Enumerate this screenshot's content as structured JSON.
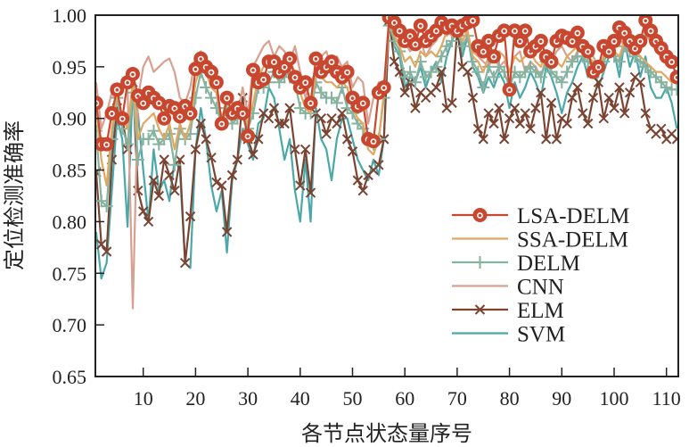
{
  "chart_data": {
    "type": "line",
    "title": "",
    "xlabel": "各节点状态量序号",
    "ylabel": "定位检测准确率",
    "xlim": [
      1,
      112
    ],
    "ylim": [
      0.65,
      1.0
    ],
    "grid": false,
    "legend_position": "bottom-right",
    "x_ticks": [
      "10",
      "20",
      "30",
      "40",
      "50",
      "60",
      "70",
      "80",
      "90",
      "100",
      "110"
    ],
    "x_tick_values": [
      10,
      20,
      30,
      40,
      50,
      60,
      70,
      80,
      90,
      100,
      110
    ],
    "y_ticks": [
      "0.65",
      "0.70",
      "0.75",
      "0.80",
      "0.85",
      "0.90",
      "0.95",
      "1.00"
    ],
    "y_tick_values": [
      0.65,
      0.7,
      0.75,
      0.8,
      0.85,
      0.9,
      0.95,
      1.0
    ],
    "series": [
      {
        "name": "SVM",
        "color": "#4aa8a8",
        "marker": "none",
        "values": [
          0.79,
          0.745,
          0.76,
          0.83,
          0.9,
          0.88,
          0.795,
          0.935,
          0.905,
          0.85,
          0.8,
          0.87,
          0.83,
          0.84,
          0.82,
          0.86,
          0.85,
          0.76,
          0.755,
          0.87,
          0.91,
          0.88,
          0.835,
          0.81,
          0.83,
          0.77,
          0.84,
          0.86,
          0.89,
          0.875,
          0.86,
          0.895,
          0.9,
          0.93,
          0.92,
          0.89,
          0.86,
          0.88,
          0.83,
          0.8,
          0.86,
          0.8,
          0.91,
          0.88,
          0.87,
          0.84,
          0.88,
          0.9,
          0.9,
          0.88,
          0.86,
          0.85,
          0.84,
          0.86,
          0.845,
          0.88,
          0.995,
          0.97,
          0.96,
          0.93,
          0.94,
          0.935,
          0.95,
          0.93,
          0.945,
          0.955,
          0.935,
          0.96,
          0.975,
          0.985,
          0.96,
          0.98,
          0.95,
          0.94,
          0.925,
          0.94,
          0.93,
          0.945,
          0.935,
          0.91,
          0.935,
          0.92,
          0.93,
          0.945,
          0.935,
          0.92,
          0.95,
          0.94,
          0.925,
          0.905,
          0.925,
          0.935,
          0.95,
          0.96,
          0.94,
          0.955,
          0.93,
          0.945,
          0.96,
          0.965,
          0.94,
          0.975,
          0.95,
          0.965,
          0.94,
          0.96,
          0.93,
          0.92,
          0.92,
          0.93,
          0.915,
          0.89
        ]
      },
      {
        "name": "ELM",
        "color": "#7a4433",
        "marker": "x",
        "values": [
          0.848,
          0.778,
          0.771,
          0.86,
          0.91,
          0.9,
          0.87,
          0.935,
          0.83,
          0.81,
          0.8,
          0.84,
          0.825,
          0.86,
          0.845,
          0.83,
          0.86,
          0.76,
          0.805,
          0.87,
          0.895,
          0.88,
          0.862,
          0.838,
          0.835,
          0.79,
          0.845,
          0.86,
          0.92,
          0.88,
          0.865,
          0.88,
          0.905,
          0.9,
          0.91,
          0.895,
          0.895,
          0.91,
          0.87,
          0.835,
          0.87,
          0.828,
          0.905,
          0.9,
          0.885,
          0.9,
          0.895,
          0.905,
          0.88,
          0.868,
          0.84,
          0.83,
          0.845,
          0.85,
          0.855,
          0.88,
          0.995,
          0.955,
          0.945,
          0.925,
          0.935,
          0.91,
          0.925,
          0.92,
          0.925,
          0.93,
          0.945,
          0.91,
          0.915,
          0.985,
          0.95,
          0.945,
          0.92,
          0.89,
          0.88,
          0.905,
          0.895,
          0.91,
          0.88,
          0.9,
          0.91,
          0.895,
          0.905,
          0.89,
          0.91,
          0.925,
          0.88,
          0.915,
          0.88,
          0.9,
          0.895,
          0.92,
          0.93,
          0.905,
          0.895,
          0.92,
          0.935,
          0.9,
          0.92,
          0.91,
          0.93,
          0.905,
          0.925,
          0.94,
          0.935,
          0.905,
          0.89,
          0.885,
          0.89,
          0.88,
          0.885,
          0.88
        ]
      },
      {
        "name": "CNN",
        "color": "#d8a090",
        "marker": "none",
        "values": [
          0.935,
          0.89,
          0.905,
          0.925,
          0.915,
          0.935,
          0.93,
          0.716,
          0.92,
          0.95,
          0.96,
          0.945,
          0.95,
          0.955,
          0.958,
          0.945,
          0.92,
          0.915,
          0.93,
          0.96,
          0.965,
          0.955,
          0.93,
          0.925,
          0.89,
          0.915,
          0.915,
          0.9,
          0.93,
          0.905,
          0.95,
          0.96,
          0.97,
          0.975,
          0.96,
          0.97,
          0.965,
          0.955,
          0.97,
          0.945,
          0.92,
          0.935,
          0.945,
          0.96,
          0.965,
          0.95,
          0.96,
          0.95,
          0.955,
          0.93,
          0.94,
          0.935,
          0.895,
          0.92,
          0.935,
          0.925,
          0.995,
          0.985,
          0.98,
          0.975,
          0.965,
          0.97,
          0.975,
          0.96,
          0.97,
          0.975,
          0.985,
          0.98,
          0.985,
          0.99,
          0.995,
          0.975,
          0.965,
          0.96,
          0.955,
          0.95,
          0.96,
          0.95,
          0.955,
          0.945,
          0.96,
          0.965,
          0.945,
          0.955,
          0.95,
          0.94,
          0.96,
          0.955,
          0.965,
          0.97,
          0.96,
          0.955,
          0.965,
          0.975,
          0.97,
          0.96,
          0.95,
          0.96,
          0.97,
          0.975,
          0.985,
          0.965,
          0.98,
          0.975,
          0.97,
          0.98,
          0.975,
          0.965,
          0.96,
          0.955,
          0.95,
          0.95
        ]
      },
      {
        "name": "DELM",
        "color": "#86b3a0",
        "marker": "+",
        "values": [
          0.888,
          0.82,
          0.815,
          0.88,
          0.92,
          0.89,
          0.875,
          0.925,
          0.86,
          0.88,
          0.88,
          0.888,
          0.875,
          0.88,
          0.885,
          0.855,
          0.89,
          0.88,
          0.885,
          0.92,
          0.945,
          0.93,
          0.92,
          0.91,
          0.895,
          0.91,
          0.895,
          0.9,
          0.905,
          0.89,
          0.905,
          0.93,
          0.93,
          0.935,
          0.945,
          0.935,
          0.94,
          0.945,
          0.935,
          0.91,
          0.905,
          0.905,
          0.935,
          0.925,
          0.92,
          0.92,
          0.915,
          0.93,
          0.91,
          0.905,
          0.895,
          0.89,
          0.88,
          0.875,
          0.88,
          0.92,
          0.99,
          0.975,
          0.965,
          0.94,
          0.945,
          0.935,
          0.955,
          0.94,
          0.945,
          0.95,
          0.96,
          0.97,
          0.975,
          0.985,
          0.97,
          0.98,
          0.955,
          0.945,
          0.93,
          0.95,
          0.94,
          0.95,
          0.945,
          0.93,
          0.945,
          0.94,
          0.945,
          0.95,
          0.945,
          0.94,
          0.955,
          0.945,
          0.94,
          0.935,
          0.945,
          0.955,
          0.96,
          0.96,
          0.955,
          0.95,
          0.945,
          0.955,
          0.965,
          0.96,
          0.955,
          0.97,
          0.965,
          0.96,
          0.955,
          0.95,
          0.945,
          0.94,
          0.935,
          0.93,
          0.928,
          0.928
        ]
      },
      {
        "name": "SSA-DELM",
        "color": "#e0a860",
        "marker": "none",
        "values": [
          0.91,
          0.86,
          0.835,
          0.89,
          0.925,
          0.9,
          0.89,
          0.935,
          0.88,
          0.895,
          0.9,
          0.905,
          0.89,
          0.88,
          0.895,
          0.87,
          0.895,
          0.88,
          0.895,
          0.935,
          0.95,
          0.945,
          0.93,
          0.925,
          0.9,
          0.92,
          0.9,
          0.905,
          0.91,
          0.895,
          0.915,
          0.94,
          0.95,
          0.955,
          0.96,
          0.95,
          0.945,
          0.955,
          0.945,
          0.925,
          0.91,
          0.905,
          0.945,
          0.94,
          0.935,
          0.935,
          0.93,
          0.935,
          0.93,
          0.91,
          0.9,
          0.895,
          0.87,
          0.865,
          0.88,
          0.925,
          0.995,
          0.98,
          0.97,
          0.955,
          0.96,
          0.95,
          0.965,
          0.96,
          0.965,
          0.96,
          0.97,
          0.985,
          0.98,
          0.99,
          0.975,
          0.985,
          0.96,
          0.955,
          0.945,
          0.96,
          0.955,
          0.965,
          0.96,
          0.945,
          0.96,
          0.955,
          0.96,
          0.965,
          0.955,
          0.95,
          0.965,
          0.96,
          0.955,
          0.95,
          0.96,
          0.965,
          0.97,
          0.965,
          0.96,
          0.955,
          0.95,
          0.96,
          0.97,
          0.965,
          0.96,
          0.975,
          0.97,
          0.965,
          0.96,
          0.955,
          0.95,
          0.945,
          0.945,
          0.94,
          0.935,
          0.935
        ]
      },
      {
        "name": "LSA-DELM",
        "color": "#c9472f",
        "marker": "o",
        "values": [
          0.915,
          0.875,
          0.875,
          0.905,
          0.928,
          0.9,
          0.935,
          0.943,
          0.922,
          0.915,
          0.925,
          0.92,
          0.915,
          0.9,
          0.912,
          0.91,
          0.902,
          0.912,
          0.905,
          0.948,
          0.958,
          0.95,
          0.945,
          0.935,
          0.895,
          0.92,
          0.905,
          0.91,
          0.905,
          0.883,
          0.947,
          0.935,
          0.938,
          0.955,
          0.955,
          0.945,
          0.95,
          0.958,
          0.94,
          0.93,
          0.935,
          0.915,
          0.958,
          0.945,
          0.95,
          0.955,
          0.945,
          0.94,
          0.945,
          0.92,
          0.912,
          0.915,
          0.88,
          0.878,
          0.925,
          0.93,
          0.998,
          0.993,
          0.985,
          0.975,
          0.98,
          0.972,
          0.99,
          0.975,
          0.98,
          0.985,
          0.993,
          0.988,
          0.99,
          0.985,
          0.99,
          0.993,
          0.995,
          0.97,
          0.965,
          0.975,
          0.96,
          0.98,
          0.985,
          0.928,
          0.985,
          0.975,
          0.985,
          0.965,
          0.97,
          0.975,
          0.96,
          0.955,
          0.975,
          0.98,
          0.978,
          0.975,
          0.983,
          0.97,
          0.965,
          0.945,
          0.95,
          0.97,
          0.965,
          0.975,
          0.988,
          0.983,
          0.975,
          0.968,
          0.975,
          0.995,
          0.985,
          0.975,
          0.968,
          0.96,
          0.955,
          0.94
        ]
      }
    ],
    "legend": [
      "LSA-DELM",
      "SSA-DELM",
      "DELM",
      "CNN",
      "ELM",
      "SVM"
    ]
  }
}
